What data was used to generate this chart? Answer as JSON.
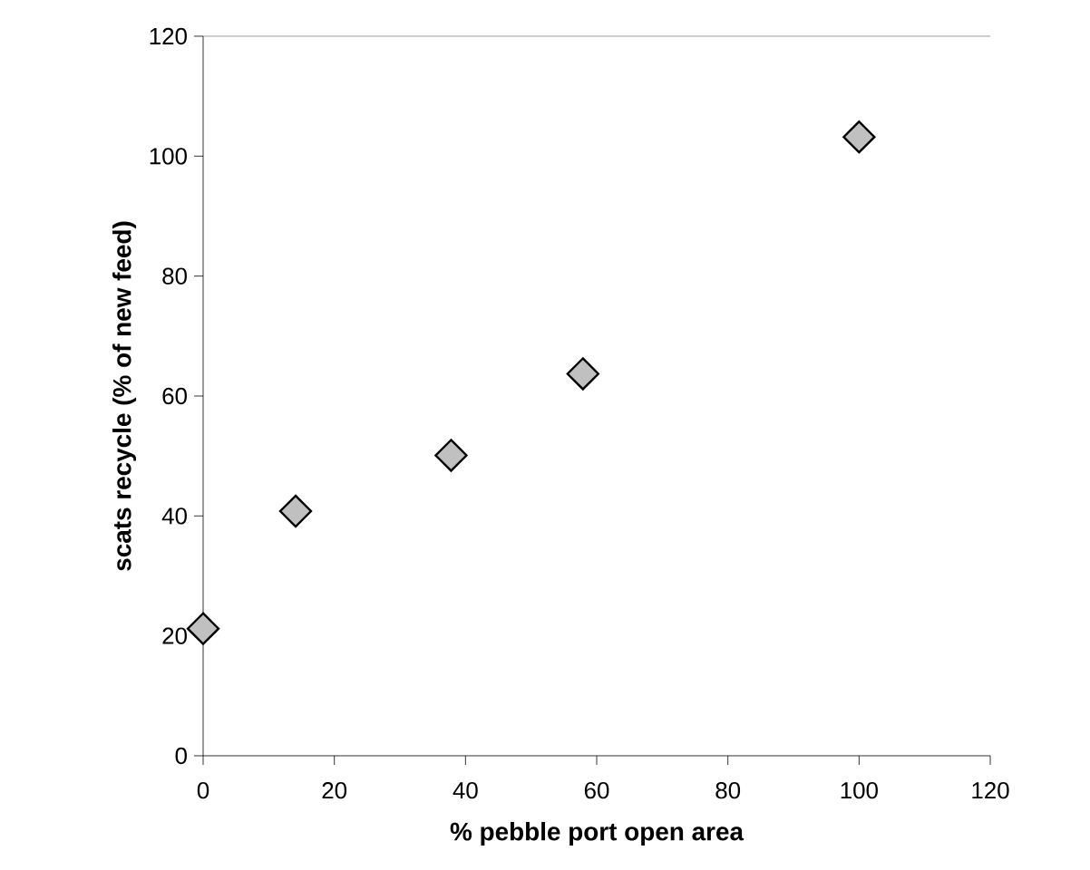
{
  "chart_data": {
    "type": "scatter",
    "xlabel": "% pebble port open area",
    "ylabel": "scats recycle (% of new feed)",
    "x": [
      0,
      14.1,
      37.8,
      57.9,
      100
    ],
    "values": [
      21.2,
      40.8,
      50.1,
      63.7,
      103.2
    ],
    "color": "#c0c0c0",
    "marker": "diamond",
    "grid": false,
    "xlim": [
      0,
      120
    ],
    "ylim": [
      0,
      120
    ],
    "xticks": [
      0,
      20,
      40,
      60,
      80,
      100,
      120
    ],
    "yticks": [
      0,
      20,
      40,
      60,
      80,
      100,
      120
    ]
  }
}
